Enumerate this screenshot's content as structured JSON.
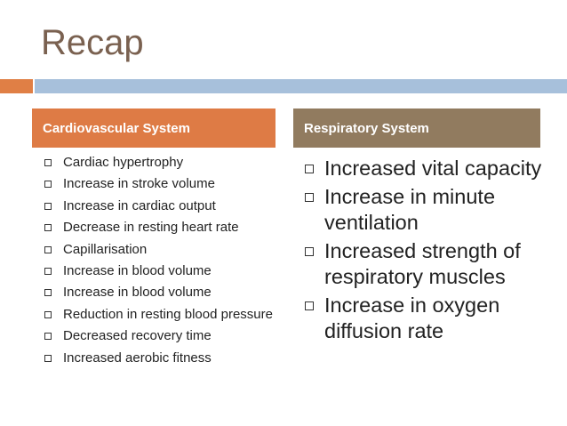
{
  "title": "Recap",
  "colors": {
    "title": "#7a6150",
    "accent_orange": "#e07f45",
    "accent_blue": "#a7c0db",
    "header_left": "#de7b45",
    "header_right": "#917b5f"
  },
  "columns": {
    "left": {
      "header": "Cardiovascular System",
      "items": [
        "Cardiac hypertrophy",
        "Increase in stroke volume",
        "Increase in cardiac output",
        "Decrease in resting heart rate",
        "Capillarisation",
        "Increase in blood volume",
        "Increase in blood volume",
        "Reduction in resting blood pressure",
        "Decreased recovery time",
        "Increased aerobic fitness"
      ]
    },
    "right": {
      "header": "Respiratory System",
      "items": [
        "Increased vital capacity",
        "Increase in minute ventilation",
        "Increased strength of respiratory muscles",
        "Increase in oxygen diffusion rate"
      ]
    }
  }
}
